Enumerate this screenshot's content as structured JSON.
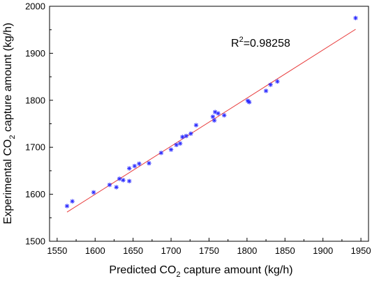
{
  "chart_data": {
    "type": "scatter",
    "xlabel_parts": [
      "Predicted CO",
      "2",
      " capture amount (kg/h)"
    ],
    "ylabel_parts": [
      "Experimental CO",
      "2",
      " capture amount (kg/h)"
    ],
    "annotation_parts": [
      "R",
      "2",
      "=0.98258"
    ],
    "xlim": [
      1540,
      1960
    ],
    "ylim": [
      1500,
      2000
    ],
    "x_ticks": [
      1550,
      1600,
      1650,
      1700,
      1750,
      1800,
      1850,
      1900,
      1950
    ],
    "y_ticks": [
      1500,
      1600,
      1700,
      1800,
      1900,
      2000
    ],
    "grid": false,
    "colors": {
      "points": "#2b2bff",
      "fit_line": "#e83a3a",
      "axes": "#000000"
    },
    "marker": "asterisk",
    "points": [
      {
        "x": 1563,
        "y": 1575
      },
      {
        "x": 1570,
        "y": 1585
      },
      {
        "x": 1598,
        "y": 1604
      },
      {
        "x": 1619,
        "y": 1620
      },
      {
        "x": 1628,
        "y": 1615
      },
      {
        "x": 1632,
        "y": 1633
      },
      {
        "x": 1637,
        "y": 1630
      },
      {
        "x": 1645,
        "y": 1628
      },
      {
        "x": 1645,
        "y": 1655
      },
      {
        "x": 1652,
        "y": 1660
      },
      {
        "x": 1658,
        "y": 1665
      },
      {
        "x": 1671,
        "y": 1666
      },
      {
        "x": 1687,
        "y": 1688
      },
      {
        "x": 1700,
        "y": 1695
      },
      {
        "x": 1707,
        "y": 1705
      },
      {
        "x": 1712,
        "y": 1708
      },
      {
        "x": 1715,
        "y": 1722
      },
      {
        "x": 1720,
        "y": 1724
      },
      {
        "x": 1726,
        "y": 1729
      },
      {
        "x": 1733,
        "y": 1747
      },
      {
        "x": 1755,
        "y": 1765
      },
      {
        "x": 1757,
        "y": 1757
      },
      {
        "x": 1758,
        "y": 1775
      },
      {
        "x": 1762,
        "y": 1772
      },
      {
        "x": 1770,
        "y": 1768
      },
      {
        "x": 1801,
        "y": 1799
      },
      {
        "x": 1803,
        "y": 1796
      },
      {
        "x": 1825,
        "y": 1820
      },
      {
        "x": 1831,
        "y": 1833
      },
      {
        "x": 1840,
        "y": 1840
      },
      {
        "x": 1943,
        "y": 1975
      }
    ],
    "fit_line": {
      "x": [
        1563,
        1943
      ],
      "y": [
        1562,
        1951
      ]
    }
  }
}
